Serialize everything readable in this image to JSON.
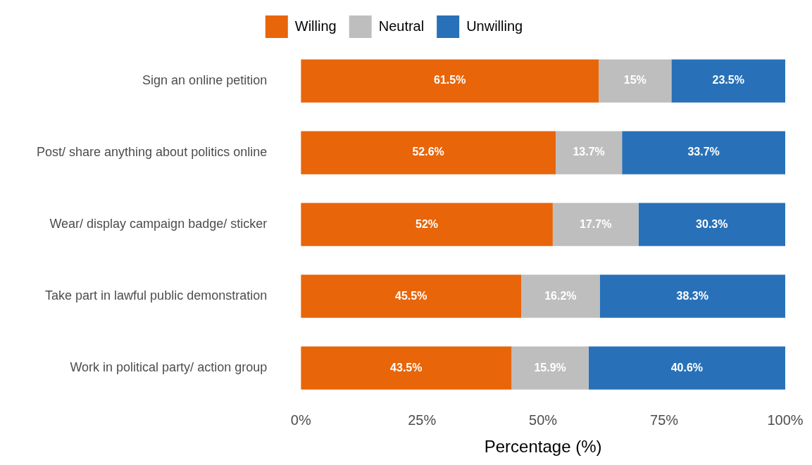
{
  "chart_data": {
    "type": "bar",
    "orientation": "horizontal",
    "stacked": true,
    "xlabel": "Percentage (%)",
    "categories": [
      "Sign an online petition",
      "Post/ share anything about politics online",
      "Wear/ display campaign badge/ sticker",
      "Take part in lawful public demonstration",
      "Work in political party/ action group"
    ],
    "series": [
      {
        "name": "Willing",
        "color": "#e8650a",
        "values": [
          61.5,
          52.6,
          52,
          45.5,
          43.5
        ],
        "value_labels": [
          "61.5%",
          "52.6%",
          "52%",
          "45.5%",
          "43.5%"
        ]
      },
      {
        "name": "Neutral",
        "color": "#bebebe",
        "values": [
          15,
          13.7,
          17.7,
          16.2,
          15.9
        ],
        "value_labels": [
          "15%",
          "13.7%",
          "17.7%",
          "16.2%",
          "15.9%"
        ]
      },
      {
        "name": "Unwilling",
        "color": "#2871b8",
        "values": [
          23.5,
          33.7,
          30.3,
          38.3,
          40.6
        ],
        "value_labels": [
          "23.5%",
          "33.7%",
          "30.3%",
          "38.3%",
          "40.6%"
        ]
      }
    ],
    "xlim": [
      0,
      100
    ],
    "xticks": [
      {
        "value": 0,
        "label": "0%"
      },
      {
        "value": 25,
        "label": "25%"
      },
      {
        "value": 50,
        "label": "50%"
      },
      {
        "value": 75,
        "label": "75%"
      },
      {
        "value": 100,
        "label": "100%"
      }
    ],
    "legend": "top"
  }
}
